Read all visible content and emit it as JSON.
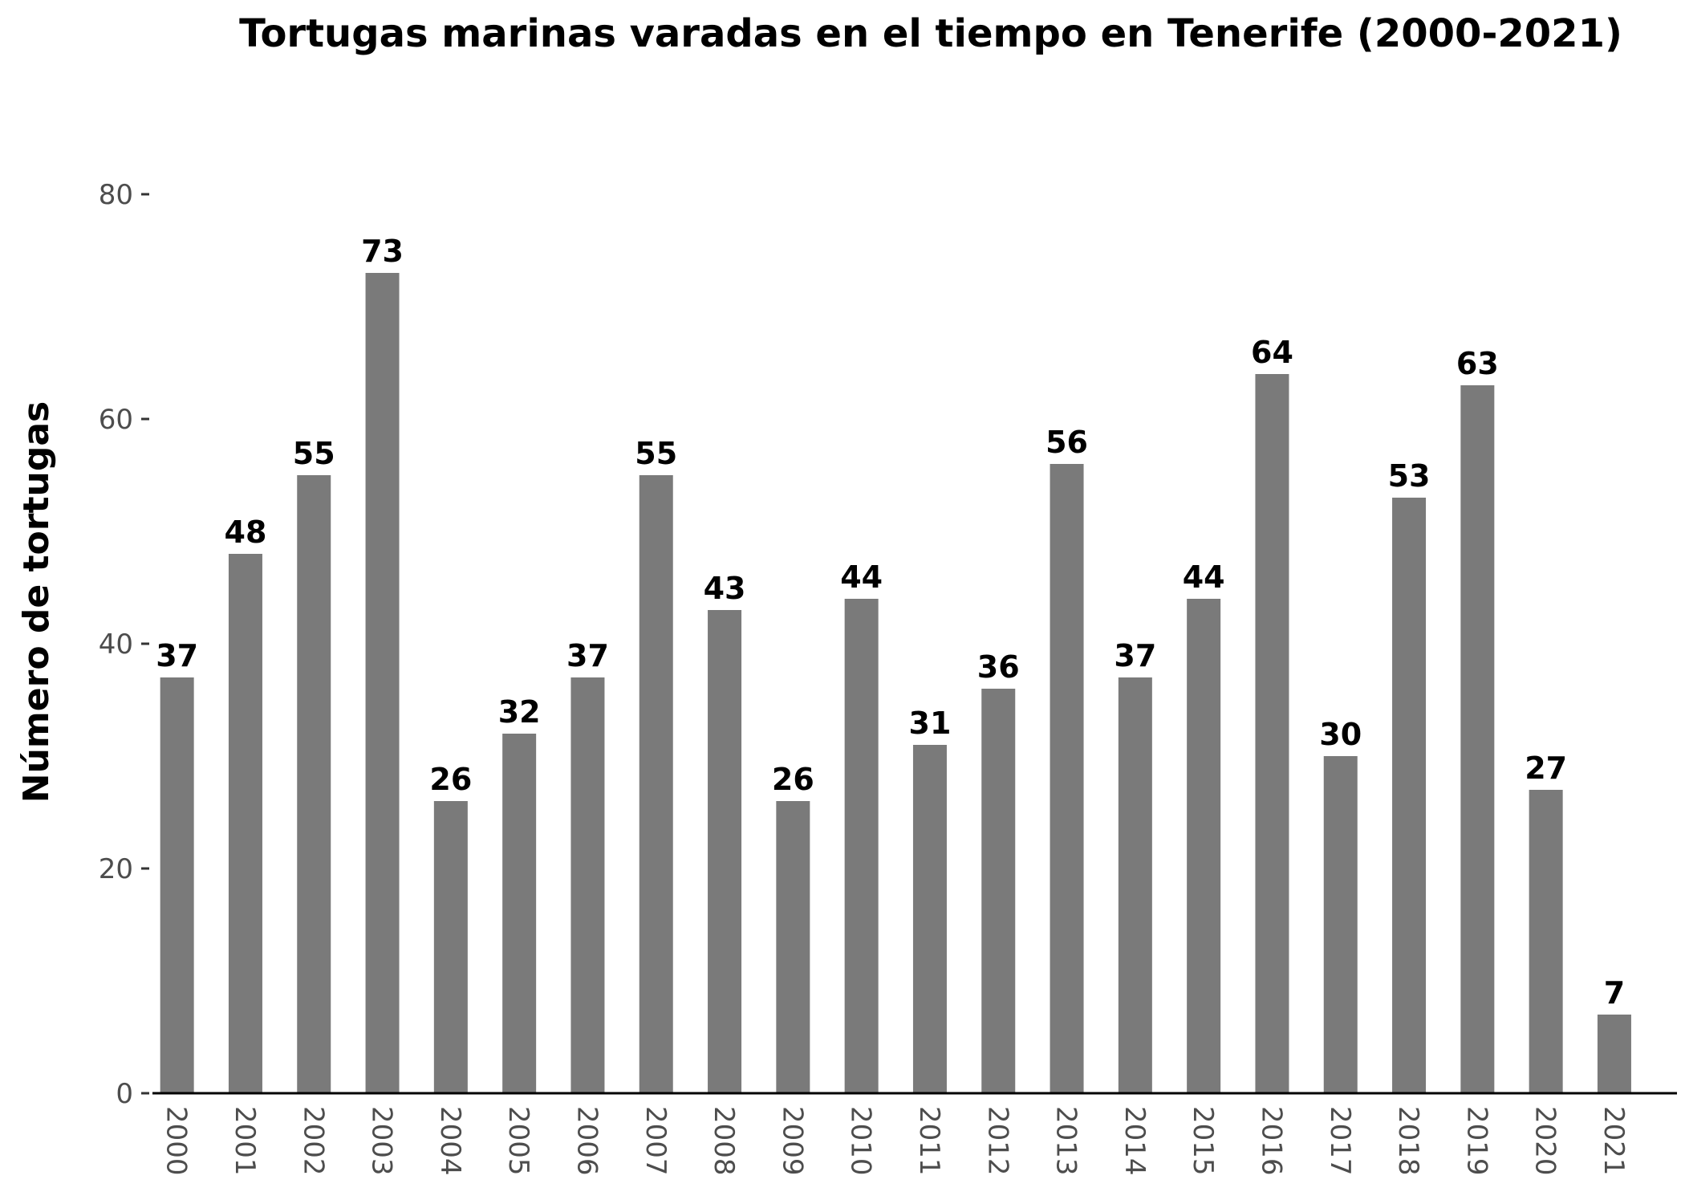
{
  "chart_data": {
    "type": "bar",
    "title": "Tortugas marinas varadas en el tiempo en Tenerife (2000-2021)",
    "xlabel": "",
    "ylabel": "Número de tortugas",
    "categories": [
      "2000",
      "2001",
      "2002",
      "2003",
      "2004",
      "2005",
      "2006",
      "2007",
      "2008",
      "2009",
      "2010",
      "2011",
      "2012",
      "2013",
      "2014",
      "2015",
      "2016",
      "2017",
      "2018",
      "2019",
      "2020",
      "2021"
    ],
    "values": [
      37,
      48,
      55,
      73,
      26,
      32,
      37,
      55,
      43,
      26,
      44,
      31,
      36,
      56,
      37,
      44,
      64,
      30,
      53,
      63,
      27,
      7
    ],
    "ylim": [
      0,
      80
    ],
    "yticks": [
      0,
      20,
      40,
      60,
      80
    ],
    "grid": false,
    "bar_color": "#7a7a7a",
    "data_labels": true
  }
}
